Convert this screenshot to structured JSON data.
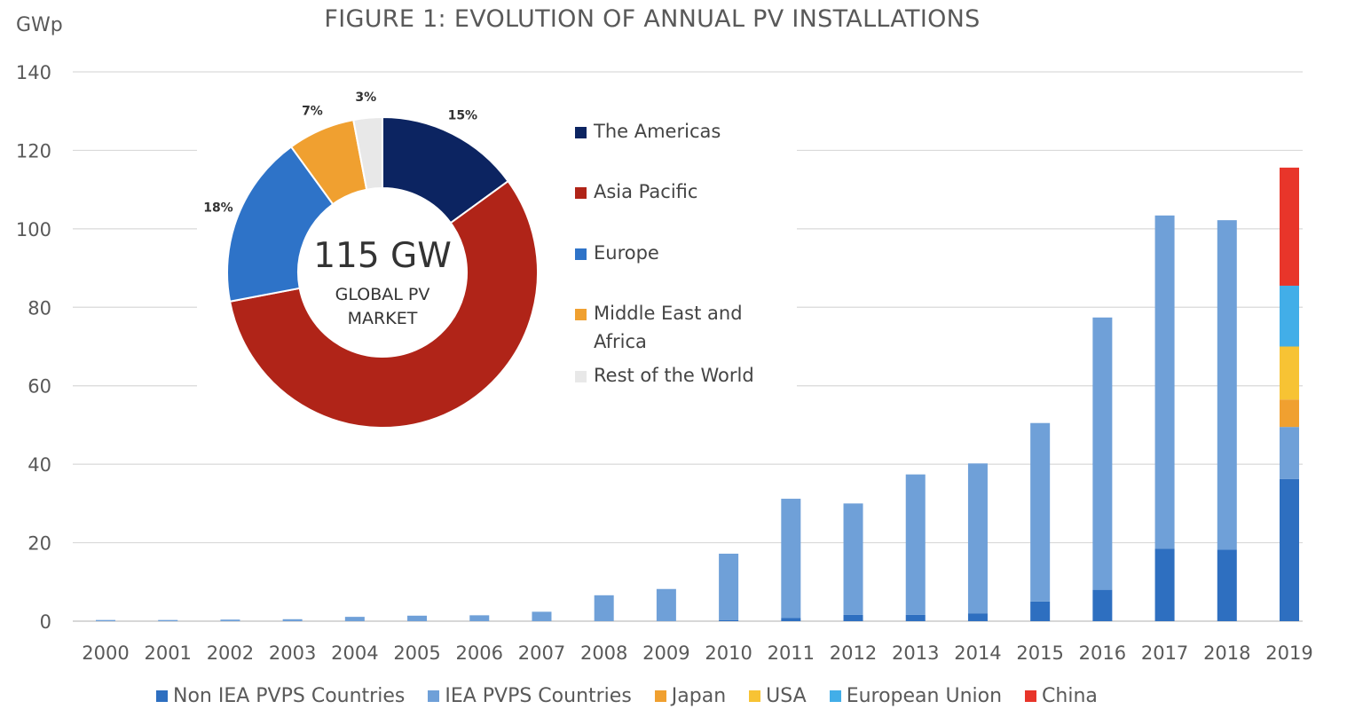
{
  "chart_data": [
    {
      "type": "bar",
      "stacked": true,
      "title": "FIGURE 1: EVOLUTION OF ANNUAL PV INSTALLATIONS",
      "ylabel": "GWp",
      "ylim": [
        0,
        140
      ],
      "yticks": [
        0,
        20,
        40,
        60,
        80,
        100,
        120,
        140
      ],
      "grid": true,
      "legend_position": "bottom",
      "categories": [
        "2000",
        "2001",
        "2002",
        "2003",
        "2004",
        "2005",
        "2006",
        "2007",
        "2008",
        "2009",
        "2010",
        "2011",
        "2012",
        "2013",
        "2014",
        "2015",
        "2016",
        "2017",
        "2018",
        "2019"
      ],
      "series": [
        {
          "name": "Non IEA PVPS Countries",
          "color": "#2e6fc0",
          "values": [
            0,
            0,
            0,
            0,
            0,
            0,
            0,
            0,
            0,
            0,
            0.3,
            0.8,
            1.6,
            1.6,
            2.0,
            5.0,
            8.0,
            18.5,
            18.2,
            36.2
          ]
        },
        {
          "name": "IEA PVPS Countries",
          "color": "#6fa0d8",
          "values": [
            0.3,
            0.3,
            0.4,
            0.5,
            1.1,
            1.4,
            1.5,
            2.4,
            6.6,
            8.2,
            16.9,
            30.4,
            28.4,
            35.8,
            38.2,
            45.5,
            69.4,
            84.9,
            84.0,
            13.3
          ]
        },
        {
          "name": "Japan",
          "color": "#f0a030",
          "values": [
            0,
            0,
            0,
            0,
            0,
            0,
            0,
            0,
            0,
            0,
            0,
            0,
            0,
            0,
            0,
            0,
            0,
            0,
            0,
            7.0
          ]
        },
        {
          "name": "USA",
          "color": "#f7c334",
          "values": [
            0,
            0,
            0,
            0,
            0,
            0,
            0,
            0,
            0,
            0,
            0,
            0,
            0,
            0,
            0,
            0,
            0,
            0,
            0,
            13.5
          ]
        },
        {
          "name": "European Union",
          "color": "#42aee8",
          "values": [
            0,
            0,
            0,
            0,
            0,
            0,
            0,
            0,
            0,
            0,
            0,
            0,
            0,
            0,
            0,
            0,
            0,
            0,
            0,
            15.5
          ]
        },
        {
          "name": "China",
          "color": "#e8352a",
          "values": [
            0,
            0,
            0,
            0,
            0,
            0,
            0,
            0,
            0,
            0,
            0,
            0,
            0,
            0,
            0,
            0,
            0,
            0,
            0,
            30.1
          ]
        }
      ]
    },
    {
      "type": "pie",
      "donut": true,
      "center_value": "115 GW",
      "center_label_line1": "GLOBAL PV",
      "center_label_line2": "MARKET",
      "legend_position": "right",
      "slices": [
        {
          "name": "The Americas",
          "value": 15,
          "label": "15%",
          "color": "#0c2461"
        },
        {
          "name": "Asia Pacific",
          "value": 57,
          "label": "",
          "color": "#b02418"
        },
        {
          "name": "Europe",
          "value": 18,
          "label": "18%",
          "color": "#2e73c8"
        },
        {
          "name": "Middle East and Africa",
          "value": 7,
          "label": "7%",
          "color": "#f0a030"
        },
        {
          "name": "Rest of the World",
          "value": 3,
          "label": "3%",
          "color": "#e8e8e8"
        }
      ]
    }
  ]
}
